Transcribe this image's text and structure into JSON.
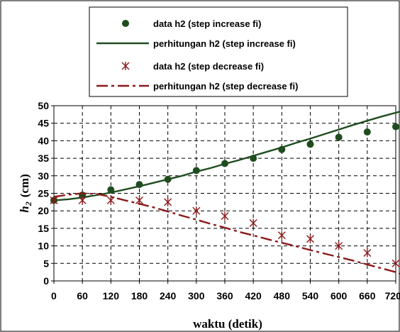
{
  "chart_data": {
    "type": "scatter",
    "xlabel": "waktu (detik)",
    "ylabel_main": "h",
    "ylabel_sub": "2",
    "ylabel_unit": "(cm)",
    "xlim": [
      0,
      720
    ],
    "ylim": [
      0,
      50
    ],
    "x_ticks": [
      0,
      60,
      120,
      180,
      240,
      300,
      360,
      420,
      480,
      540,
      600,
      660,
      720
    ],
    "y_ticks": [
      0,
      5,
      10,
      15,
      20,
      25,
      30,
      35,
      40,
      45,
      50
    ],
    "grid": true,
    "legend_position": "top",
    "series": [
      {
        "name": "data h2 (step increase fi)",
        "kind": "points",
        "marker": "circle",
        "color": "#1f4d1f",
        "x": [
          0,
          60,
          120,
          180,
          240,
          300,
          360,
          420,
          480,
          540,
          600,
          660,
          720
        ],
        "y": [
          23,
          24.5,
          26,
          27.5,
          29,
          31.5,
          33.5,
          35,
          37.5,
          39,
          41,
          42.5,
          44
        ]
      },
      {
        "name": "perhitungan h2 (step increase fi)",
        "kind": "line",
        "style": "solid",
        "color": "#1f4d1f",
        "x": [
          0,
          30,
          60,
          90,
          120,
          150,
          180,
          210,
          240,
          270,
          300,
          330,
          360,
          390,
          420,
          450,
          480,
          510,
          540,
          570,
          600,
          630,
          660,
          690,
          720,
          735
        ],
        "y": [
          23,
          23.3,
          23.8,
          24.5,
          25.2,
          26.1,
          27,
          28,
          29,
          30,
          31.2,
          32.2,
          33.4,
          34.5,
          35.7,
          36.9,
          38.1,
          39.4,
          40.6,
          41.9,
          43.2,
          44.5,
          45.7,
          46.9,
          48,
          48.5
        ]
      },
      {
        "name": "data h2 (step decrease fi)",
        "kind": "points",
        "marker": "star",
        "color": "#8b1a1a",
        "x": [
          0,
          60,
          120,
          180,
          240,
          300,
          360,
          420,
          480,
          540,
          600,
          660,
          720
        ],
        "y": [
          23,
          23,
          23,
          23,
          22.5,
          20,
          18.5,
          16.5,
          13,
          12,
          10,
          8,
          5
        ]
      },
      {
        "name": "perhitungan h2 (step decrease fi)",
        "kind": "line",
        "style": "dashdot",
        "color": "#8b1a1a",
        "x": [
          0,
          30,
          60,
          90,
          120,
          150,
          180,
          210,
          240,
          270,
          300,
          330,
          360,
          390,
          420,
          450,
          480,
          510,
          540,
          570,
          600,
          630,
          660,
          690,
          720,
          735
        ],
        "y": [
          24,
          24.6,
          25,
          24.8,
          24,
          23,
          22,
          21,
          19.8,
          18.6,
          17.5,
          16.3,
          15.2,
          14,
          13,
          11.9,
          10.9,
          9.9,
          8.8,
          7.8,
          6.8,
          5.8,
          4.7,
          3.6,
          2.5,
          1.8
        ]
      }
    ]
  }
}
